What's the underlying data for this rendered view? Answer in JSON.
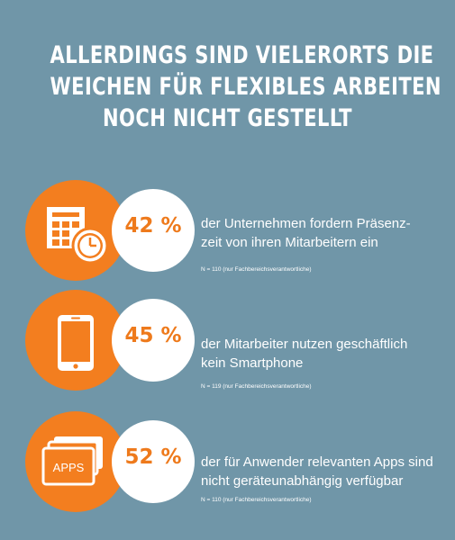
{
  "headline": {
    "line1": "ALLERDINGS SIND VIELERORTS DIE",
    "line2": "WEICHEN FÜR FLEXIBLES ARBEITEN",
    "line3": "NOCH NICHT GESTELLT"
  },
  "stats": [
    {
      "icon": "calendar-clock-icon",
      "percent": "42 %",
      "text_line1": "der Unternehmen fordern Präsenz-",
      "text_line2": "zeit von ihren Mitarbeitern ein",
      "note": "N = 110 (nur Fachbereichsverantwortliche)"
    },
    {
      "icon": "smartphone-icon",
      "percent": "45 %",
      "text_line1": "der Mitarbeiter nutzen geschäftlich",
      "text_line2": "kein Smartphone",
      "note": "N = 119 (nur Fachbereichsverantwortliche)"
    },
    {
      "icon": "apps-stack-icon",
      "icon_label": "APPS",
      "percent": "52 %",
      "text_line1": "der für Anwender relevanten Apps sind",
      "text_line2": "nicht geräteunabhängig verfügbar",
      "note": "N = 110 (nur Fachbereichsverantwortliche)"
    }
  ],
  "colors": {
    "background": "#7096a8",
    "accent": "#f37e1f",
    "percent_text": "#ee7a1c",
    "text": "#ffffff"
  }
}
